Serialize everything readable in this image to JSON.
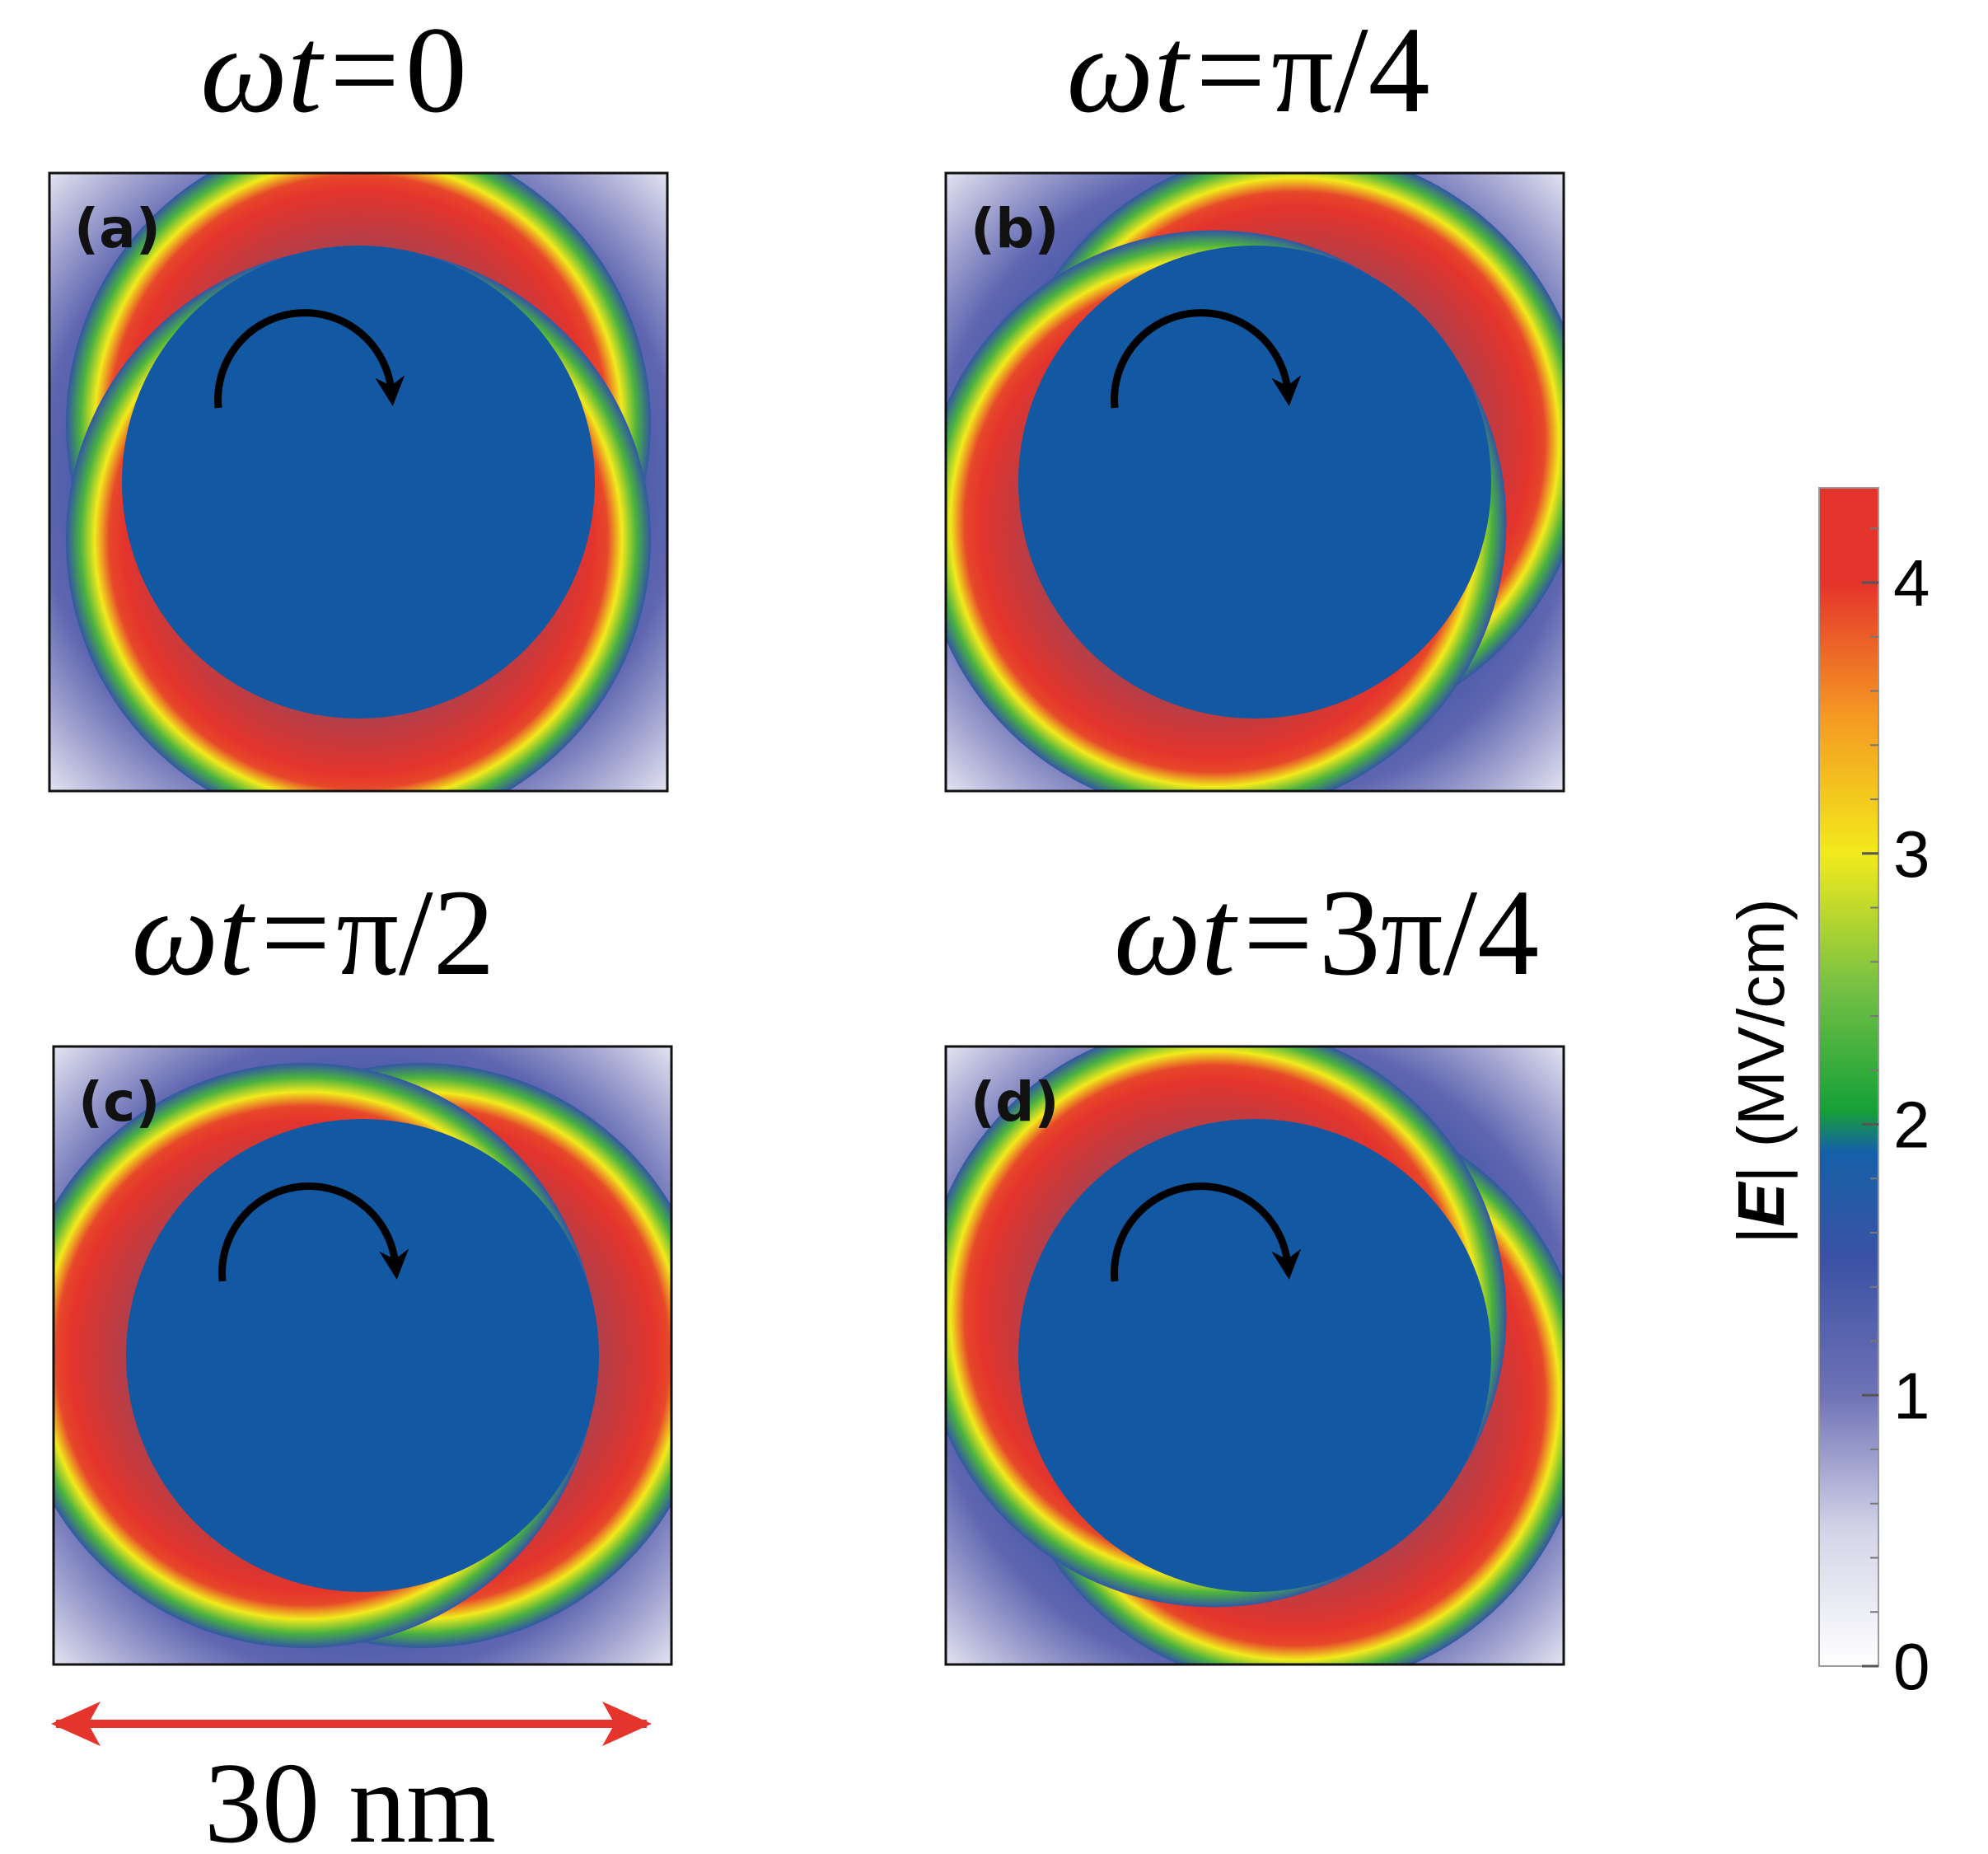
{
  "chart_data": {
    "type": "heatmap",
    "quantity_label": "|E| (MV/cm)",
    "quantity_symbol": "E",
    "quantity_unit": "(MV/cm)",
    "colorbar": {
      "range": [
        0,
        4.35
      ],
      "ticks": [
        0,
        1,
        2,
        3,
        4
      ],
      "tick_labels": [
        "0",
        "1",
        "2",
        "3",
        "4"
      ],
      "minor_tick_step": 0.2,
      "colors": [
        {
          "value": 0.0,
          "color": "#ffffff"
        },
        {
          "value": 0.5,
          "color": "#d4d4e8"
        },
        {
          "value": 1.0,
          "color": "#6f72b6"
        },
        {
          "value": 1.5,
          "color": "#3c52a4"
        },
        {
          "value": 1.9,
          "color": "#1560a8"
        },
        {
          "value": 2.05,
          "color": "#16a038"
        },
        {
          "value": 2.5,
          "color": "#74c044"
        },
        {
          "value": 3.0,
          "color": "#f2ea1c"
        },
        {
          "value": 3.5,
          "color": "#f59a22"
        },
        {
          "value": 4.0,
          "color": "#e4342c"
        },
        {
          "value": 4.35,
          "color": "#e4342c"
        }
      ]
    },
    "panels": [
      {
        "tag": "(a)",
        "title_prefix": "ωt=",
        "title_value": "0",
        "phase_deg": 0
      },
      {
        "tag": "(b)",
        "title_prefix": "ωt=",
        "title_value": "π/4",
        "phase_deg": 45
      },
      {
        "tag": "(c)",
        "title_prefix": "ωt=",
        "title_value": "π/2",
        "phase_deg": 90
      },
      {
        "tag": "(d)",
        "title_prefix": "ωt=",
        "title_value": "3π/4",
        "phase_deg": 135
      }
    ],
    "field_levels": {
      "particle_interior": 1.85,
      "peak_at_surface": 4.2,
      "background_far": 0.2,
      "background_near": 1.3
    },
    "rotation_direction": "clockwise",
    "scale_bar": {
      "label": "30 nm",
      "length_nm": 30
    }
  },
  "colors": {
    "particle": "#1358a2",
    "frame": "#111111",
    "arrow": "#000000",
    "scale_bar": "#e4342c"
  }
}
